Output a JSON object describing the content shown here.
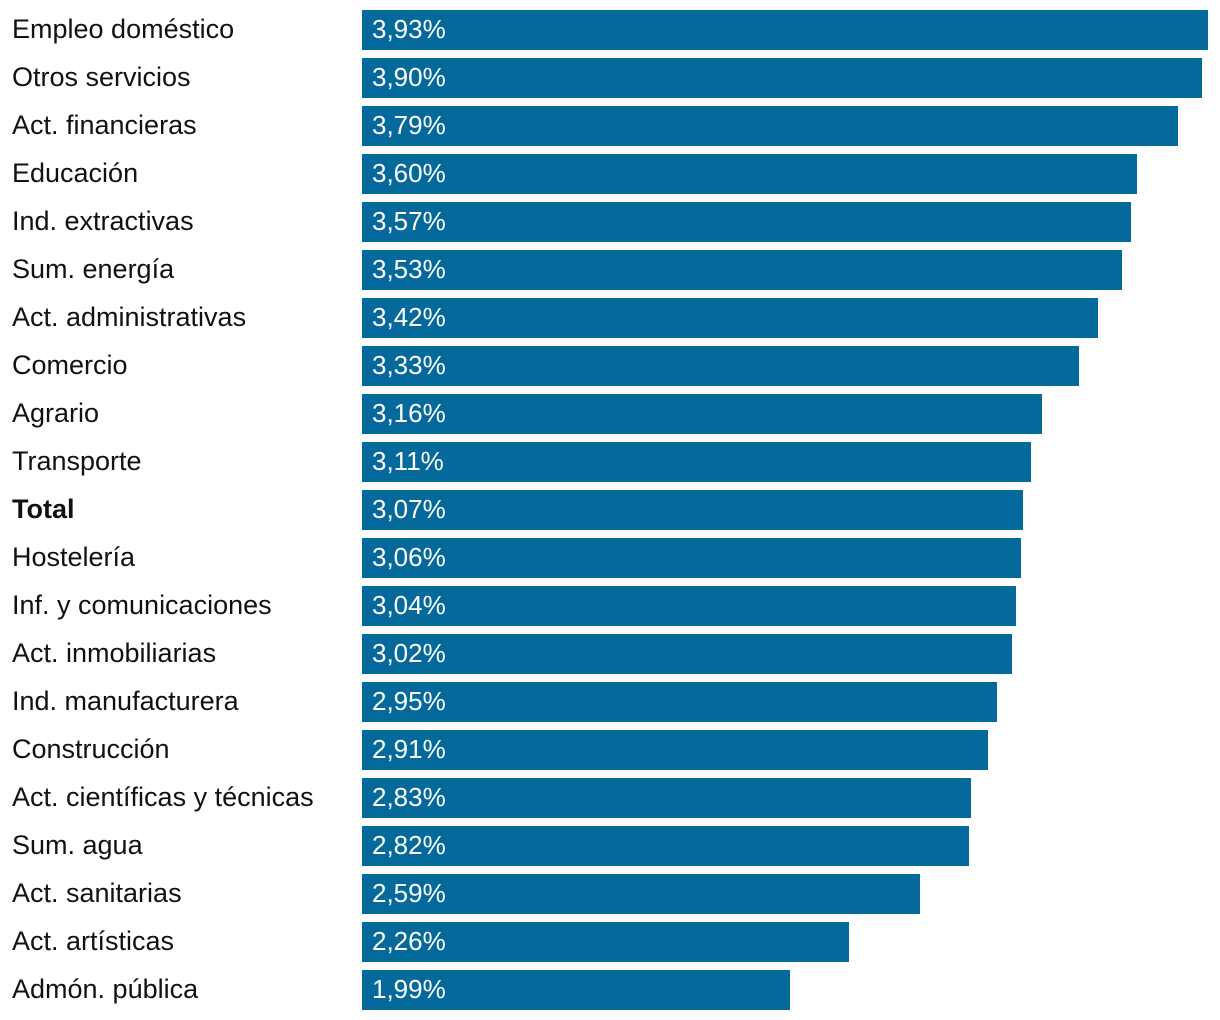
{
  "chart_data": {
    "type": "bar",
    "orientation": "horizontal",
    "categories": [
      "Empleo doméstico",
      "Otros servicios",
      "Act. financieras",
      "Educación",
      "Ind. extractivas",
      "Sum. energía",
      "Act. administrativas",
      "Comercio",
      "Agrario",
      "Transporte",
      "Total",
      "Hostelería",
      "Inf. y comunicaciones",
      "Act. inmobiliarias",
      "Ind. manufacturera",
      "Construcción",
      "Act. científicas y técnicas",
      "Sum. agua",
      "Act. sanitarias",
      "Act. artísticas",
      "Admón. pública"
    ],
    "values": [
      3.93,
      3.9,
      3.79,
      3.6,
      3.57,
      3.53,
      3.42,
      3.33,
      3.16,
      3.11,
      3.07,
      3.06,
      3.04,
      3.02,
      2.95,
      2.91,
      2.83,
      2.82,
      2.59,
      2.26,
      1.99
    ],
    "value_labels": [
      "3,93%",
      "3,90%",
      "3,79%",
      "3,60%",
      "3,57%",
      "3,53%",
      "3,42%",
      "3,33%",
      "3,16%",
      "3,11%",
      "3,07%",
      "3,06%",
      "3,04%",
      "3,02%",
      "2,95%",
      "2,91%",
      "2,83%",
      "2,82%",
      "2,59%",
      "2,26%",
      "1,99%"
    ],
    "highlighted_category": "Total",
    "bar_color": "#05699c",
    "label_color": "#111111",
    "value_label_color": "#ffffff",
    "title": "",
    "xlabel": "",
    "ylabel": "",
    "grid": false,
    "legend": "none"
  }
}
